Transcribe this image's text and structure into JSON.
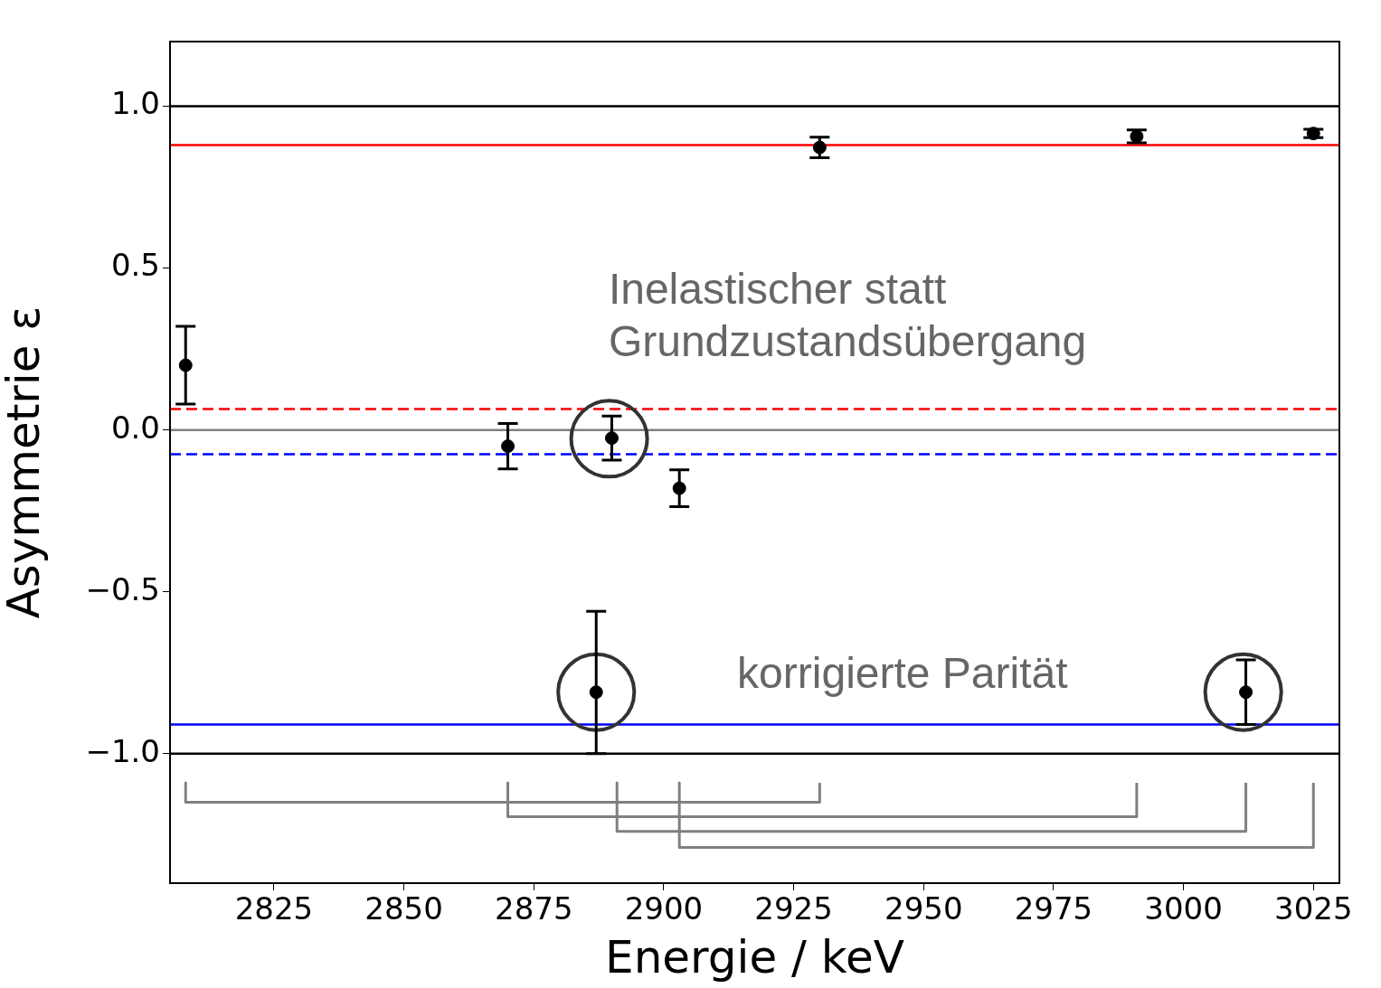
{
  "chart_data": {
    "type": "scatter",
    "xlabel": "Energie / keV",
    "ylabel": "Asymmetrie ε",
    "xlim": [
      2805,
      3030
    ],
    "xticks": [
      2825,
      2850,
      2875,
      2900,
      2925,
      2950,
      2975,
      3000,
      3025
    ],
    "ylim": [
      -1.4,
      1.2
    ],
    "yticks": [
      {
        "value": -1.0,
        "label": "−1.0"
      },
      {
        "value": -0.5,
        "label": "−0.5"
      },
      {
        "value": 0.0,
        "label": "0.0"
      },
      {
        "value": 0.5,
        "label": "0.5"
      },
      {
        "value": 1.0,
        "label": "1.0"
      }
    ],
    "grid": false,
    "legend": false,
    "marker": "circle",
    "series": [
      {
        "color": "#000000",
        "x": [
          2808,
          2870,
          2890,
          2903,
          2930,
          2991,
          3025,
          2887,
          3012
        ],
        "values": [
          0.2,
          -0.05,
          -0.025,
          -0.18,
          0.873,
          0.907,
          0.916,
          -0.81,
          -0.81
        ],
        "errors": [
          0.12,
          0.07,
          0.068,
          0.057,
          0.032,
          0.02,
          0.013,
          [
            -1.0,
            -0.56
          ],
          0.1
        ]
      },
      {
        "type": "bubble",
        "color": "#333333",
        "x": [
          2889.5,
          2887,
          3011.5
        ],
        "values": [
          -0.027,
          -0.81,
          -0.81
        ],
        "sizes": [
          1,
          1,
          1
        ]
      },
      {
        "type": "line",
        "color": "#808080",
        "marker": "none",
        "x": [
          2808,
          2808,
          2930,
          2930
        ],
        "values": [
          -1.09,
          -1.15,
          -1.15,
          -1.09
        ]
      },
      {
        "type": "line",
        "color": "#808080",
        "marker": "none",
        "x": [
          2870,
          2870,
          2991,
          2991
        ],
        "values": [
          -1.09,
          -1.195,
          -1.195,
          -1.09
        ]
      },
      {
        "type": "line",
        "color": "#808080",
        "marker": "none",
        "x": [
          2891,
          2891,
          3012,
          3012
        ],
        "values": [
          -1.09,
          -1.24,
          -1.24,
          -1.09
        ]
      },
      {
        "type": "line",
        "color": "#808080",
        "marker": "none",
        "x": [
          2903,
          2903,
          3025,
          3025
        ],
        "values": [
          -1.09,
          -1.29,
          -1.29,
          -1.09
        ]
      }
    ],
    "ref_lines": [
      {
        "axis": "y",
        "value": 1.0,
        "color": "#000000",
        "line_style": "solid"
      },
      {
        "axis": "y",
        "value": -1.0,
        "color": "#000000",
        "line_style": "solid"
      },
      {
        "axis": "y",
        "value": 0.0,
        "color": "#808080",
        "line_style": "solid"
      },
      {
        "axis": "y",
        "value": 0.88,
        "color": "#ff0000",
        "line_style": "solid"
      },
      {
        "axis": "y",
        "value": 0.065,
        "color": "#ff0000",
        "line_style": "dashed"
      },
      {
        "axis": "y",
        "value": -0.075,
        "color": "#0000ff",
        "line_style": "dashed"
      },
      {
        "axis": "y",
        "value": -0.91,
        "color": "#0000ff",
        "line_style": "solid"
      }
    ],
    "annotations": [
      "Inelastischer statt\nGrundzustandsübergang",
      "korrigierte Parität"
    ]
  }
}
